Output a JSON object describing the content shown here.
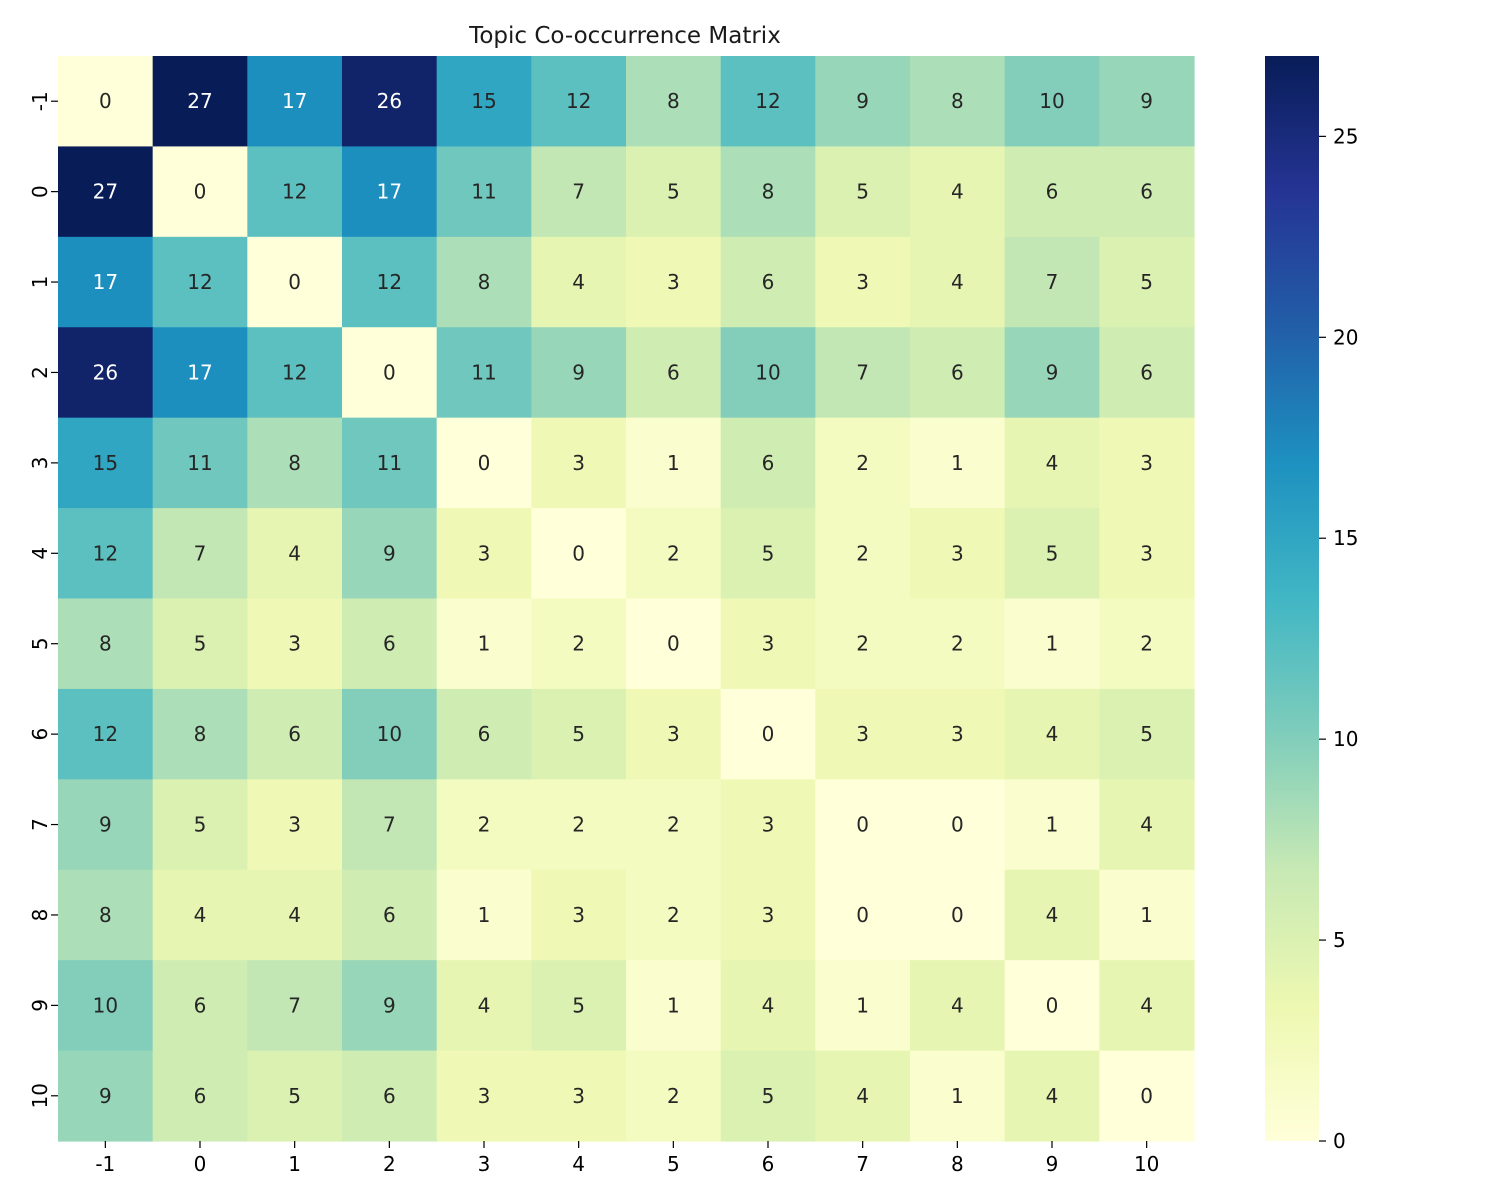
{
  "chart_data": {
    "type": "heatmap",
    "title": "Topic Co-occurrence Matrix",
    "xlabel": "",
    "ylabel": "",
    "x_categories": [
      "-1",
      "0",
      "1",
      "2",
      "3",
      "4",
      "5",
      "6",
      "7",
      "8",
      "9",
      "10"
    ],
    "y_categories": [
      "-1",
      "0",
      "1",
      "2",
      "3",
      "4",
      "5",
      "6",
      "7",
      "8",
      "9",
      "10"
    ],
    "values": [
      [
        0,
        27,
        17,
        26,
        15,
        12,
        8,
        12,
        9,
        8,
        10,
        9
      ],
      [
        27,
        0,
        12,
        17,
        11,
        7,
        5,
        8,
        5,
        4,
        6,
        6
      ],
      [
        17,
        12,
        0,
        12,
        8,
        4,
        3,
        6,
        3,
        4,
        7,
        5
      ],
      [
        26,
        17,
        12,
        0,
        11,
        9,
        6,
        10,
        7,
        6,
        9,
        6
      ],
      [
        15,
        11,
        8,
        11,
        0,
        3,
        1,
        6,
        2,
        1,
        4,
        3
      ],
      [
        12,
        7,
        4,
        9,
        3,
        0,
        2,
        5,
        2,
        3,
        5,
        3
      ],
      [
        8,
        5,
        3,
        6,
        1,
        2,
        0,
        3,
        2,
        2,
        1,
        2
      ],
      [
        12,
        8,
        6,
        10,
        6,
        5,
        3,
        0,
        3,
        3,
        4,
        5
      ],
      [
        9,
        5,
        3,
        7,
        2,
        2,
        2,
        3,
        0,
        0,
        1,
        4
      ],
      [
        8,
        4,
        4,
        6,
        1,
        3,
        2,
        3,
        0,
        0,
        4,
        1
      ],
      [
        10,
        6,
        7,
        9,
        4,
        5,
        1,
        4,
        1,
        4,
        0,
        4
      ],
      [
        9,
        6,
        5,
        6,
        3,
        3,
        2,
        5,
        4,
        1,
        4,
        0
      ]
    ],
    "colormap": "YlGnBu",
    "vmin": 0,
    "vmax": 27,
    "colorbar_ticks": [
      0,
      5,
      10,
      15,
      20,
      25
    ],
    "annotated": true
  }
}
